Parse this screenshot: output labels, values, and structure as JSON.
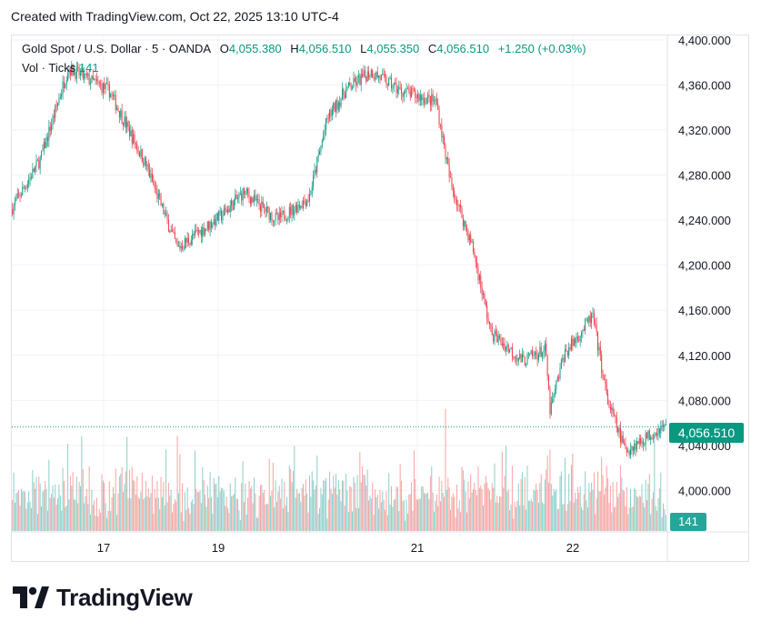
{
  "header": {
    "created_text": "Created with TradingView.com, Oct 22, 2025 13:10 UTC-4"
  },
  "legend": {
    "symbol": "Gold Spot / U.S. Dollar · 5 · OANDA",
    "o_label": "O",
    "o_value": "4,055.380",
    "h_label": "H",
    "h_value": "4,056.510",
    "l_label": "L",
    "l_value": "4,055.350",
    "c_label": "C",
    "c_value": "4,056.510",
    "change": "+1.250 (+0.03%)",
    "vol_label": "Vol · Ticks",
    "vol_value": "141"
  },
  "price_tag": "4,056.510",
  "volume_tag": "141",
  "logo_text": "TradingView",
  "colors": {
    "up": "#089981",
    "down": "#f23645",
    "vol_up": "#26a69a",
    "vol_down": "#ef5350",
    "grid": "#f0f3fa"
  },
  "chart_data": {
    "type": "candlestick",
    "title": "",
    "y_ticks": [
      "4,400.000",
      "4,360.000",
      "4,320.000",
      "4,280.000",
      "4,240.000",
      "4,200.000",
      "4,160.000",
      "4,120.000",
      "4,080.000",
      "4,040.000",
      "4,000.000"
    ],
    "x_ticks": [
      "17",
      "19",
      "21",
      "22"
    ],
    "ylim": [
      3964,
      4404
    ],
    "last_price": 4056.51,
    "price_anchors": [
      {
        "date": "Oct 16",
        "price": 4250
      },
      {
        "date": "Oct 16",
        "price": 4295
      },
      {
        "date": "Oct 17",
        "price": 4375
      },
      {
        "date": "Oct 17",
        "price": 4355
      },
      {
        "date": "Oct 17",
        "price": 4290
      },
      {
        "date": "Oct 17",
        "price": 4215
      },
      {
        "date": "Oct 19",
        "price": 4245
      },
      {
        "date": "Oct 19",
        "price": 4265
      },
      {
        "date": "Oct 19",
        "price": 4240
      },
      {
        "date": "Oct 20",
        "price": 4260
      },
      {
        "date": "Oct 20",
        "price": 4330
      },
      {
        "date": "Oct 20",
        "price": 4355
      },
      {
        "date": "Oct 20",
        "price": 4372
      },
      {
        "date": "Oct 20",
        "price": 4355
      },
      {
        "date": "Oct 20",
        "price": 4345
      },
      {
        "date": "Oct 21",
        "price": 4275
      },
      {
        "date": "Oct 21",
        "price": 4215
      },
      {
        "date": "Oct 21",
        "price": 4140
      },
      {
        "date": "Oct 21",
        "price": 4115
      },
      {
        "date": "Oct 21",
        "price": 4125
      },
      {
        "date": "Oct 21",
        "price": 4070
      },
      {
        "date": "Oct 21",
        "price": 4120
      },
      {
        "date": "Oct 22",
        "price": 4155
      },
      {
        "date": "Oct 22",
        "price": 4080
      },
      {
        "date": "Oct 22",
        "price": 4035
      },
      {
        "date": "Oct 22",
        "price": 4056.51
      }
    ]
  }
}
